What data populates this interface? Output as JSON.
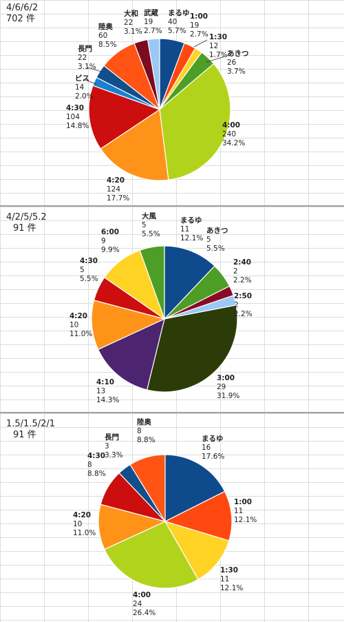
{
  "chart_data": [
    {
      "type": "pie",
      "title_lines": [
        "4/6/6/2",
        "702 件"
      ],
      "slices": [
        {
          "label": "まるゆ",
          "value": 40,
          "percent": "5.7%",
          "color": "#0f4a8c"
        },
        {
          "label": "1:00",
          "value": 19,
          "percent": "2.7%",
          "color": "#ff4810"
        },
        {
          "label": "1:30",
          "value": 12,
          "percent": "1.7%",
          "color": "#ffd324"
        },
        {
          "label": "あきつ",
          "value": 26,
          "percent": "3.7%",
          "color": "#4d9e26"
        },
        {
          "label": "4:00",
          "value": 240,
          "percent": "34.2%",
          "color": "#b2d31b"
        },
        {
          "label": "4:20",
          "value": 124,
          "percent": "17.7%",
          "color": "#ff9319"
        },
        {
          "label": "4:30",
          "value": 104,
          "percent": "14.8%",
          "color": "#cc0e0e"
        },
        {
          "label": "ビス",
          "value": 14,
          "percent": "2.0%",
          "color": "#1a7fd0"
        },
        {
          "label": "長門",
          "value": 22,
          "percent": "3.1%",
          "color": "#114e8a"
        },
        {
          "label": "陸奥",
          "value": 60,
          "percent": "8.5%",
          "color": "#ff5414"
        },
        {
          "label": "大和",
          "value": 22,
          "percent": "3.1%",
          "color": "#7d0b1f"
        },
        {
          "label": "武蔵",
          "value": 19,
          "percent": "2.7%",
          "color": "#99c9f4"
        }
      ]
    },
    {
      "type": "pie",
      "title_lines": [
        "4/2/5/5.2",
        "91 件"
      ],
      "slices": [
        {
          "label": "まるゆ",
          "value": 11,
          "percent": "12.1%",
          "color": "#0f4a8c"
        },
        {
          "label": "あきつ",
          "value": 5,
          "percent": "5.5%",
          "color": "#4d9e26"
        },
        {
          "label": "2:40",
          "value": 2,
          "percent": "2.2%",
          "color": "#8a0c24"
        },
        {
          "label": "2:50",
          "value": 2,
          "percent": "2.2%",
          "color": "#99c9f4"
        },
        {
          "label": "3:00",
          "value": 29,
          "percent": "31.9%",
          "color": "#2c3c08"
        },
        {
          "label": "4:10",
          "value": 13,
          "percent": "14.3%",
          "color": "#4c2470"
        },
        {
          "label": "4:20",
          "value": 10,
          "percent": "11.0%",
          "color": "#ff9319"
        },
        {
          "label": "4:30",
          "value": 5,
          "percent": "5.5%",
          "color": "#cc0e0e"
        },
        {
          "label": "6:00",
          "value": 9,
          "percent": "9.9%",
          "color": "#ffd324"
        },
        {
          "label": "大風",
          "value": 5,
          "percent": "5.5%",
          "color": "#4d9e26"
        }
      ]
    },
    {
      "type": "pie",
      "title_lines": [
        "1.5/1.5/2/1",
        "91 件"
      ],
      "slices": [
        {
          "label": "まるゆ",
          "value": 16,
          "percent": "17.6%",
          "color": "#0f4a8c"
        },
        {
          "label": "1:00",
          "value": 11,
          "percent": "12.1%",
          "color": "#ff4810"
        },
        {
          "label": "1:30",
          "value": 11,
          "percent": "12.1%",
          "color": "#ffd324"
        },
        {
          "label": "4:00",
          "value": 24,
          "percent": "26.4%",
          "color": "#b2d31b"
        },
        {
          "label": "4:20",
          "value": 10,
          "percent": "11.0%",
          "color": "#ff9319"
        },
        {
          "label": "4:30",
          "value": 8,
          "percent": "8.8%",
          "color": "#cc0e0e"
        },
        {
          "label": "長門",
          "value": 3,
          "percent": "3.3%",
          "color": "#114e8a"
        },
        {
          "label": "陸奥",
          "value": 8,
          "percent": "8.8%",
          "color": "#ff5414"
        }
      ]
    }
  ]
}
